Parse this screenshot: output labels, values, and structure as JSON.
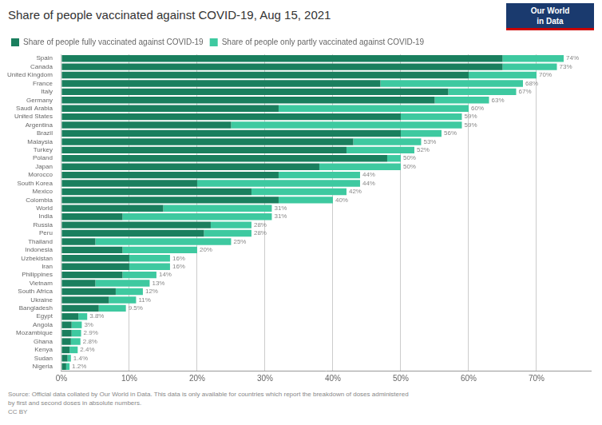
{
  "chart_data": {
    "type": "bar",
    "orientation": "horizontal",
    "stacked": true,
    "title": "Share of people vaccinated against COVID-19, Aug 15, 2021",
    "categories": [
      "Spain",
      "Canada",
      "United Kingdom",
      "France",
      "Italy",
      "Germany",
      "Saudi Arabia",
      "United States",
      "Argentina",
      "Brazil",
      "Malaysia",
      "Turkey",
      "Poland",
      "Japan",
      "Morocco",
      "South Korea",
      "Mexico",
      "Colombia",
      "World",
      "India",
      "Russia",
      "Peru",
      "Thailand",
      "Indonesia",
      "Uzbekistan",
      "Iran",
      "Philippines",
      "Vietnam",
      "South Africa",
      "Ukraine",
      "Bangladesh",
      "Egypt",
      "Angola",
      "Mozambique",
      "Ghana",
      "Kenya",
      "Sudan",
      "Nigeria"
    ],
    "series": [
      {
        "name": "Share of people fully vaccinated against COVID-19",
        "color": "#1a7f5e",
        "values": [
          65,
          65,
          60,
          47,
          57,
          55,
          32,
          50,
          25,
          50,
          43,
          42,
          48,
          38,
          32,
          20,
          28,
          32,
          15,
          9,
          22,
          21,
          5,
          9,
          10,
          10,
          9,
          5,
          8,
          7,
          5.5,
          2.5,
          1.5,
          1.5,
          1.4,
          1.2,
          0.9,
          0.7
        ]
      },
      {
        "name": "Share of people only partly vaccinated against COVID-19",
        "color": "#3ec9a0",
        "values": [
          9,
          8,
          10,
          21,
          10,
          8,
          28,
          9,
          34,
          6,
          10,
          10,
          2,
          12,
          12,
          24,
          14,
          8,
          16,
          22,
          6,
          7,
          20,
          11,
          6,
          6,
          5,
          8,
          4,
          4,
          4,
          1.3,
          1.5,
          1.4,
          1.4,
          1.2,
          0.5,
          0.5
        ]
      }
    ],
    "totals": [
      74,
      73,
      70,
      68,
      67,
      63,
      60,
      59,
      59,
      56,
      53,
      52,
      50,
      50,
      44,
      44,
      42,
      40,
      31,
      31,
      28,
      28,
      25,
      20,
      16,
      16,
      14,
      13,
      12,
      11,
      9.5,
      3.8,
      3.0,
      2.9,
      2.8,
      2.4,
      1.4,
      1.2
    ],
    "total_labels": [
      "74%",
      "73%",
      "70%",
      "68%",
      "67%",
      "63%",
      "60%",
      "59%",
      "59%",
      "56%",
      "53%",
      "52%",
      "50%",
      "50%",
      "44%",
      "44%",
      "42%",
      "40%",
      "31%",
      "31%",
      "28%",
      "28%",
      "25%",
      "20%",
      "16%",
      "16%",
      "14%",
      "13%",
      "12%",
      "11%",
      "9.5%",
      "3.8%",
      "3%",
      "2.9%",
      "2.8%",
      "2.4%",
      "1.4%",
      "1.2%"
    ],
    "xlim": [
      0,
      78
    ],
    "xticks": [
      {
        "value": 0,
        "label": "0%"
      },
      {
        "value": 10,
        "label": "10%"
      },
      {
        "value": 20,
        "label": "20%"
      },
      {
        "value": 30,
        "label": "30%"
      },
      {
        "value": 40,
        "label": "40%"
      },
      {
        "value": 50,
        "label": "50%"
      },
      {
        "value": 60,
        "label": "60%"
      },
      {
        "value": 70,
        "label": "70%"
      }
    ],
    "grid": true,
    "legend": "upper left",
    "source": "Source: Official data collated by Our World in Data. This data is only available for countries which report the breakdown of doses administered\nby first and second doses in absolute numbers.\nCC BY",
    "annotations": [
      "Our World",
      "in Data"
    ]
  }
}
